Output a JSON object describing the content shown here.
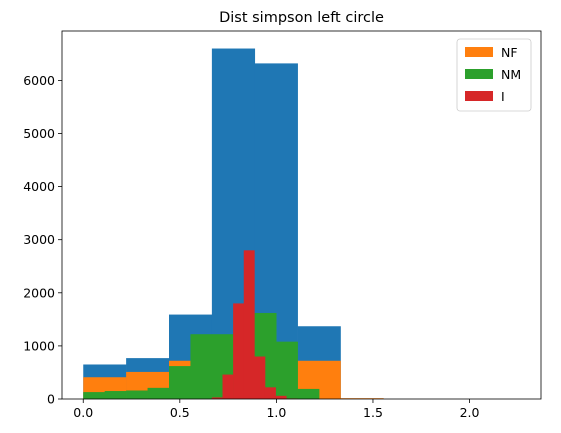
{
  "chart_data": {
    "type": "bar",
    "title": "Dist simpson left circle",
    "xlabel": "",
    "ylabel": "",
    "xlim": [
      -0.11,
      2.37
    ],
    "ylim": [
      0,
      6930
    ],
    "xticks": [
      0.0,
      0.5,
      1.0,
      1.5,
      2.0
    ],
    "xtick_labels": [
      "0.0",
      "0.5",
      "1.0",
      "1.5",
      "2.0"
    ],
    "yticks": [
      0,
      1000,
      2000,
      3000,
      4000,
      5000,
      6000
    ],
    "ytick_labels": [
      "0",
      "1000",
      "2000",
      "3000",
      "4000",
      "5000",
      "6000"
    ],
    "legend_position": "top-right",
    "series": [
      {
        "name": "",
        "color": "#1f77b4",
        "edges": [
          0.0,
          0.222,
          0.444,
          0.666,
          0.888,
          1.11,
          1.332
        ],
        "values": [
          650,
          770,
          1590,
          6600,
          6320,
          1370
        ],
        "in_legend": false
      },
      {
        "name": "NF",
        "color": "#ff7f0e",
        "edges": [
          0.0,
          0.222,
          0.444,
          0.666,
          0.888,
          1.11,
          1.332,
          1.554
        ],
        "values": [
          410,
          510,
          720,
          720,
          720,
          720,
          15
        ],
        "in_legend": true
      },
      {
        "name": "NM",
        "color": "#2ca02c",
        "edges": [
          0.0,
          0.111,
          0.222,
          0.333,
          0.444,
          0.555,
          0.666,
          0.777,
          0.888,
          0.999,
          1.11,
          1.221,
          1.332
        ],
        "values": [
          130,
          150,
          160,
          210,
          620,
          1220,
          1220,
          1620,
          1620,
          1080,
          190,
          0
        ],
        "in_legend": true
      },
      {
        "name": "I",
        "color": "#d62728",
        "edges": [
          0.666,
          0.721,
          0.776,
          0.831,
          0.886,
          0.941,
          0.996,
          1.051,
          1.106
        ],
        "values": [
          30,
          460,
          1800,
          2800,
          800,
          220,
          60,
          10
        ],
        "in_legend": true
      }
    ]
  }
}
